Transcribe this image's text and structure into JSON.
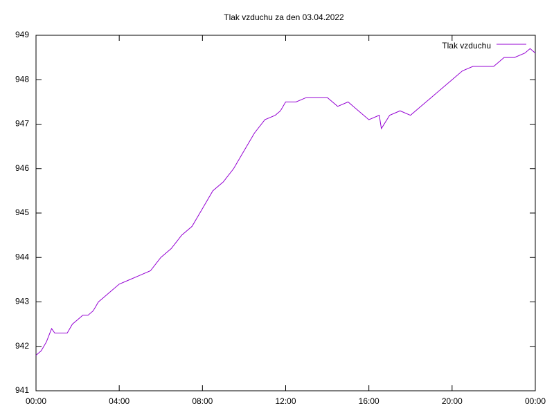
{
  "chart_data": {
    "type": "line",
    "title": "Tlak vzduchu za den 03.04.2022",
    "x": [
      0,
      0.25,
      0.5,
      0.75,
      0.9,
      1.0,
      1.5,
      1.75,
      2.0,
      2.25,
      2.5,
      2.75,
      3.0,
      3.25,
      3.5,
      4.0,
      4.5,
      5.0,
      5.5,
      6.0,
      6.5,
      7.0,
      7.5,
      8.0,
      8.5,
      9.0,
      9.5,
      10.0,
      10.5,
      11.0,
      11.5,
      11.75,
      12.0,
      12.5,
      13.0,
      13.5,
      14.0,
      14.5,
      15.0,
      15.5,
      16.0,
      16.5,
      16.6,
      17.0,
      17.5,
      18.0,
      18.5,
      19.0,
      19.5,
      20.0,
      20.5,
      21.0,
      22.0,
      22.5,
      23.0,
      23.5,
      23.75,
      24.0
    ],
    "series": [
      {
        "name": "Tlak vzduchu",
        "color": "#9400d3",
        "values": [
          941.8,
          941.9,
          942.1,
          942.4,
          942.3,
          942.3,
          942.3,
          942.5,
          942.6,
          942.7,
          942.7,
          942.8,
          943.0,
          943.1,
          943.2,
          943.4,
          943.5,
          943.6,
          943.7,
          944.0,
          944.2,
          944.5,
          944.7,
          945.1,
          945.5,
          945.7,
          946.0,
          946.4,
          946.8,
          947.1,
          947.2,
          947.3,
          947.5,
          947.5,
          947.6,
          947.6,
          947.6,
          947.4,
          947.5,
          947.3,
          947.1,
          947.2,
          946.9,
          947.2,
          947.3,
          947.2,
          947.4,
          947.6,
          947.8,
          948.0,
          948.2,
          948.3,
          948.3,
          948.5,
          948.5,
          948.6,
          948.7,
          948.6
        ]
      }
    ],
    "xlim": [
      0,
      24
    ],
    "xticks": [
      {
        "value": 0,
        "label": "00:00"
      },
      {
        "value": 4,
        "label": "04:00"
      },
      {
        "value": 8,
        "label": "08:00"
      },
      {
        "value": 12,
        "label": "12:00"
      },
      {
        "value": 16,
        "label": "16:00"
      },
      {
        "value": 20,
        "label": "20:00"
      },
      {
        "value": 24,
        "label": "00:00"
      }
    ],
    "ylim": [
      941,
      949
    ],
    "yticks": [
      941,
      942,
      943,
      944,
      945,
      946,
      947,
      948,
      949
    ],
    "grid": false,
    "legend": "top-right"
  }
}
